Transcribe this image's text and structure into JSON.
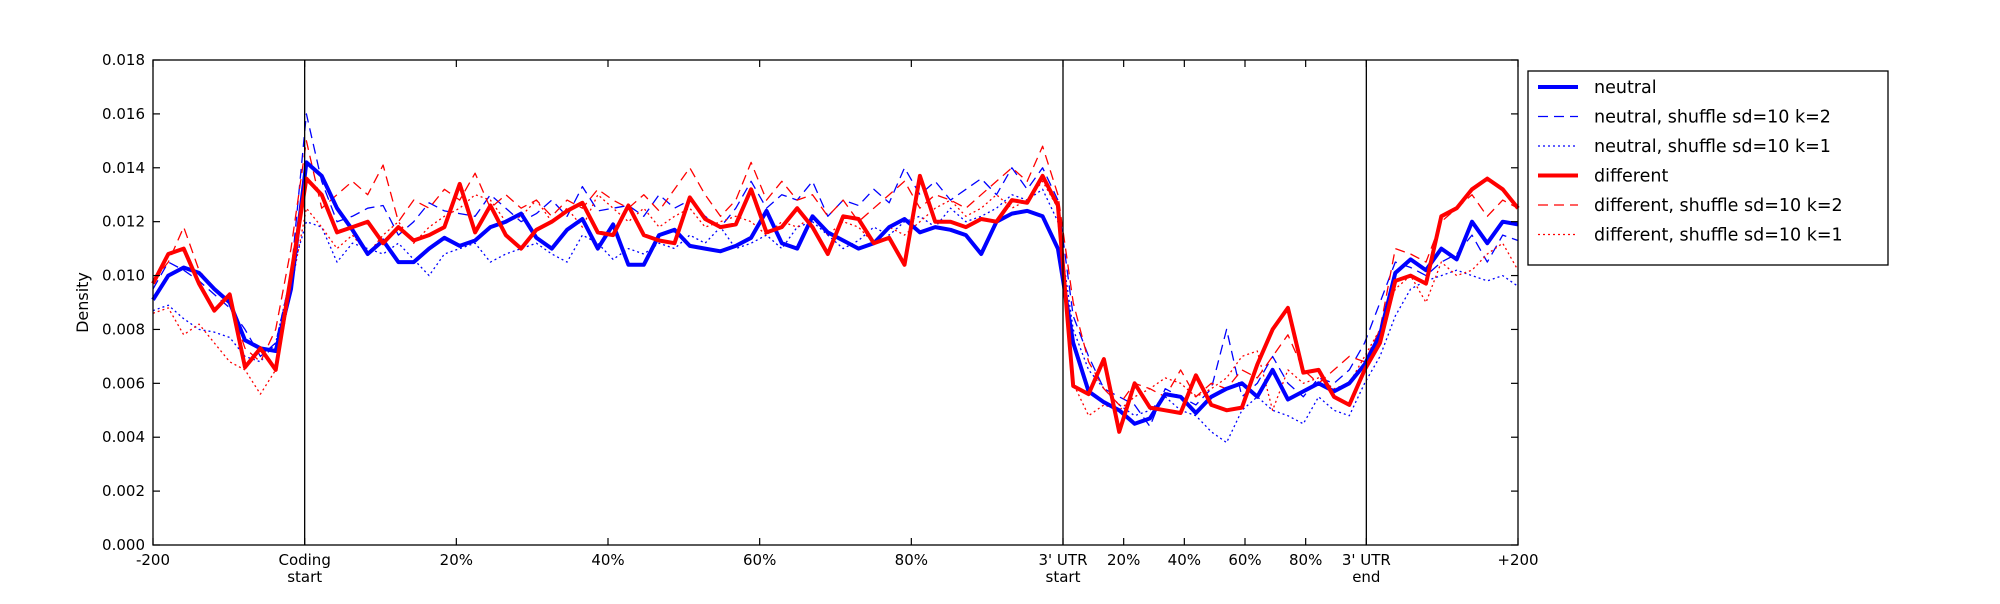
{
  "chart_data": {
    "type": "line",
    "title": "",
    "xlabel": "",
    "ylabel": "Density",
    "ylim": [
      0,
      0.018
    ],
    "yticks": [
      "0.000",
      "0.002",
      "0.004",
      "0.006",
      "0.008",
      "0.010",
      "0.012",
      "0.014",
      "0.016",
      "0.018"
    ],
    "x_tick_labels": [
      {
        "at": 0,
        "lines": [
          "-200"
        ]
      },
      {
        "at": 20,
        "lines": [
          "Coding",
          "start"
        ]
      },
      {
        "at": 40,
        "lines": [
          "20%"
        ]
      },
      {
        "at": 60,
        "lines": [
          "40%"
        ]
      },
      {
        "at": 80,
        "lines": [
          "60%"
        ]
      },
      {
        "at": 100,
        "lines": [
          "80%"
        ]
      },
      {
        "at": 120,
        "lines": [
          "3' UTR",
          "start"
        ]
      },
      {
        "at": 128,
        "lines": [
          "20%"
        ]
      },
      {
        "at": 136,
        "lines": [
          "40%"
        ]
      },
      {
        "at": 144,
        "lines": [
          "60%"
        ]
      },
      {
        "at": 152,
        "lines": [
          "80%"
        ]
      },
      {
        "at": 160,
        "lines": [
          "3' UTR",
          "end"
        ]
      },
      {
        "at": 180,
        "lines": [
          "+200"
        ]
      }
    ],
    "region_boundaries": [
      20,
      120,
      160
    ],
    "x_range": [
      0,
      180
    ],
    "grid": false,
    "legend_position": "outside-right",
    "series": [
      {
        "name": "neutral",
        "color": "#0000ff",
        "style": "solid",
        "width": 4,
        "values": [
          0.0091,
          0.01,
          0.0103,
          0.0101,
          0.0095,
          0.009,
          0.0076,
          0.0073,
          0.0072,
          0.0095,
          0.0142,
          0.0137,
          0.0125,
          0.0117,
          0.0108,
          0.0113,
          0.0105,
          0.0105,
          0.011,
          0.0114,
          0.0111,
          0.0113,
          0.0118,
          0.012,
          0.0123,
          0.0114,
          0.011,
          0.0117,
          0.0121,
          0.011,
          0.0119,
          0.0104,
          0.0104,
          0.0115,
          0.0117,
          0.0111,
          0.011,
          0.0109,
          0.0111,
          0.0114,
          0.0124,
          0.0112,
          0.011,
          0.0122,
          0.0116,
          0.0113,
          0.011,
          0.0112,
          0.0118,
          0.0121,
          0.0116,
          0.0118,
          0.0117,
          0.0115,
          0.0108,
          0.012,
          0.0123,
          0.0124,
          0.0122,
          0.011,
          0.0075,
          0.0057,
          0.0053,
          0.005,
          0.0045,
          0.0047,
          0.0056,
          0.0055,
          0.0049,
          0.0055,
          0.0058,
          0.006,
          0.0055,
          0.0065,
          0.0054,
          0.0057,
          0.006,
          0.0057,
          0.006,
          0.0067,
          0.0078,
          0.0101,
          0.0106,
          0.0102,
          0.011,
          0.0106,
          0.012,
          0.0112,
          0.012,
          0.0119
        ]
      },
      {
        "name": "neutral, shuffle sd=10 k=2",
        "color": "#0000ff",
        "style": "dashed",
        "width": 1.3,
        "values": [
          0.0095,
          0.0105,
          0.0102,
          0.0098,
          0.0093,
          0.0088,
          0.008,
          0.007,
          0.0075,
          0.01,
          0.016,
          0.0135,
          0.012,
          0.0122,
          0.0125,
          0.0126,
          0.0115,
          0.012,
          0.0127,
          0.0124,
          0.0123,
          0.0122,
          0.013,
          0.0125,
          0.012,
          0.0123,
          0.0128,
          0.0122,
          0.0133,
          0.0124,
          0.0125,
          0.0126,
          0.0122,
          0.013,
          0.0125,
          0.0128,
          0.0122,
          0.0118,
          0.0125,
          0.0135,
          0.0125,
          0.013,
          0.0128,
          0.0135,
          0.0122,
          0.0128,
          0.0126,
          0.0132,
          0.0127,
          0.014,
          0.013,
          0.0135,
          0.0128,
          0.0132,
          0.0136,
          0.013,
          0.014,
          0.0132,
          0.014,
          0.0128,
          0.0085,
          0.007,
          0.0058,
          0.0055,
          0.0052,
          0.0044,
          0.0058,
          0.0055,
          0.0052,
          0.0058,
          0.008,
          0.0055,
          0.006,
          0.007,
          0.006,
          0.0055,
          0.0062,
          0.006,
          0.0065,
          0.0075,
          0.009,
          0.0105,
          0.0103,
          0.01,
          0.0105,
          0.0108,
          0.0115,
          0.0105,
          0.0115,
          0.0113
        ]
      },
      {
        "name": "neutral, shuffle sd=10 k=1",
        "color": "#0000ff",
        "style": "dotted",
        "width": 1.3,
        "values": [
          0.0087,
          0.0089,
          0.0084,
          0.008,
          0.0079,
          0.0077,
          0.007,
          0.0068,
          0.0075,
          0.01,
          0.012,
          0.0118,
          0.0105,
          0.0112,
          0.011,
          0.0108,
          0.0112,
          0.0106,
          0.01,
          0.0108,
          0.011,
          0.0112,
          0.0105,
          0.0108,
          0.011,
          0.0112,
          0.0108,
          0.0105,
          0.0115,
          0.0112,
          0.0106,
          0.011,
          0.0108,
          0.0112,
          0.011,
          0.0115,
          0.0112,
          0.0118,
          0.011,
          0.0112,
          0.0115,
          0.011,
          0.0118,
          0.012,
          0.0115,
          0.011,
          0.0113,
          0.0118,
          0.0115,
          0.012,
          0.0122,
          0.0118,
          0.0125,
          0.012,
          0.0122,
          0.0125,
          0.013,
          0.0128,
          0.0132,
          0.012,
          0.008,
          0.0065,
          0.0058,
          0.0052,
          0.0048,
          0.005,
          0.0055,
          0.005,
          0.0048,
          0.0042,
          0.0038,
          0.005,
          0.0055,
          0.005,
          0.0048,
          0.0045,
          0.0055,
          0.005,
          0.0048,
          0.006,
          0.007,
          0.0085,
          0.0095,
          0.0098,
          0.01,
          0.0102,
          0.01,
          0.0098,
          0.01,
          0.0096
        ]
      },
      {
        "name": "different",
        "color": "#ff0000",
        "style": "solid",
        "width": 4,
        "values": [
          0.0097,
          0.0108,
          0.011,
          0.0097,
          0.0087,
          0.0093,
          0.0066,
          0.0073,
          0.0065,
          0.01,
          0.0136,
          0.013,
          0.0116,
          0.0118,
          0.012,
          0.0112,
          0.0118,
          0.0113,
          0.0115,
          0.0118,
          0.0134,
          0.0116,
          0.0126,
          0.0115,
          0.011,
          0.0117,
          0.012,
          0.0124,
          0.0127,
          0.0116,
          0.0115,
          0.0126,
          0.0115,
          0.0113,
          0.0112,
          0.0129,
          0.0121,
          0.0118,
          0.0119,
          0.0132,
          0.0116,
          0.0118,
          0.0125,
          0.0118,
          0.0108,
          0.0122,
          0.0121,
          0.0112,
          0.0114,
          0.0104,
          0.0137,
          0.012,
          0.012,
          0.0118,
          0.0121,
          0.012,
          0.0128,
          0.0127,
          0.0137,
          0.0126,
          0.0059,
          0.0056,
          0.0069,
          0.0042,
          0.006,
          0.0051,
          0.005,
          0.0049,
          0.0063,
          0.0052,
          0.005,
          0.0051,
          0.0067,
          0.008,
          0.0088,
          0.0064,
          0.0065,
          0.0055,
          0.0052,
          0.0065,
          0.0075,
          0.0098,
          0.01,
          0.0097,
          0.0122,
          0.0125,
          0.0132,
          0.0136,
          0.0132,
          0.0125
        ]
      },
      {
        "name": "different, shuffle sd=10 k=2",
        "color": "#ff0000",
        "style": "dashed",
        "width": 1.3,
        "values": [
          0.0098,
          0.0105,
          0.0118,
          0.0102,
          0.0095,
          0.009,
          0.0073,
          0.0068,
          0.008,
          0.011,
          0.015,
          0.0125,
          0.013,
          0.0135,
          0.013,
          0.0141,
          0.012,
          0.0128,
          0.0125,
          0.0132,
          0.0128,
          0.0138,
          0.0125,
          0.013,
          0.0125,
          0.0128,
          0.0122,
          0.0128,
          0.0125,
          0.0132,
          0.0128,
          0.0125,
          0.013,
          0.0124,
          0.0132,
          0.014,
          0.013,
          0.0122,
          0.0128,
          0.0142,
          0.0128,
          0.0135,
          0.0128,
          0.013,
          0.0122,
          0.0128,
          0.012,
          0.0125,
          0.013,
          0.0135,
          0.0125,
          0.013,
          0.0128,
          0.0125,
          0.013,
          0.0135,
          0.014,
          0.0135,
          0.0148,
          0.013,
          0.009,
          0.0068,
          0.0058,
          0.0052,
          0.006,
          0.0058,
          0.0055,
          0.0065,
          0.0055,
          0.006,
          0.0058,
          0.0065,
          0.0062,
          0.007,
          0.0078,
          0.0065,
          0.006,
          0.0065,
          0.007,
          0.0068,
          0.008,
          0.011,
          0.0108,
          0.0105,
          0.012,
          0.0125,
          0.013,
          0.0122,
          0.0128,
          0.0125
        ]
      },
      {
        "name": "different, shuffle sd=10 k=1",
        "color": "#ff0000",
        "style": "dotted",
        "width": 1.3,
        "values": [
          0.0086,
          0.0088,
          0.0078,
          0.0082,
          0.0075,
          0.0068,
          0.0065,
          0.0056,
          0.0065,
          0.0095,
          0.0125,
          0.0118,
          0.011,
          0.0115,
          0.0108,
          0.0115,
          0.012,
          0.0112,
          0.0118,
          0.0122,
          0.0125,
          0.013,
          0.0128,
          0.012,
          0.0122,
          0.0128,
          0.012,
          0.0125,
          0.0118,
          0.013,
          0.0125,
          0.012,
          0.0125,
          0.0118,
          0.0122,
          0.0125,
          0.0118,
          0.012,
          0.0122,
          0.012,
          0.0115,
          0.012,
          0.0118,
          0.0122,
          0.0115,
          0.012,
          0.0118,
          0.0112,
          0.0118,
          0.0115,
          0.012,
          0.0125,
          0.0128,
          0.0122,
          0.0125,
          0.013,
          0.0125,
          0.0128,
          0.0135,
          0.0125,
          0.006,
          0.0048,
          0.0052,
          0.005,
          0.0055,
          0.0058,
          0.0062,
          0.006,
          0.0055,
          0.0058,
          0.0062,
          0.007,
          0.0072,
          0.005,
          0.0065,
          0.006,
          0.0062,
          0.0058,
          0.006,
          0.007,
          0.008,
          0.0095,
          0.01,
          0.009,
          0.0105,
          0.01,
          0.0102,
          0.0108,
          0.0112,
          0.0102
        ]
      }
    ]
  }
}
